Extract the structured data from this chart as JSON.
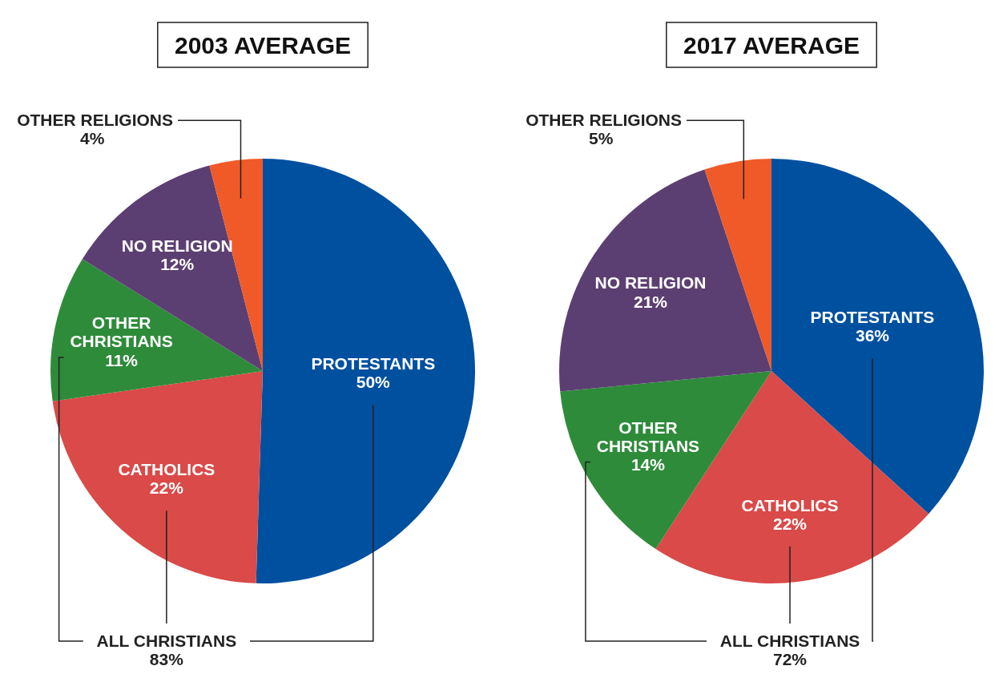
{
  "chart_data": [
    {
      "type": "pie",
      "title": "2003 AVERAGE",
      "categories": [
        "PROTESTANTS",
        "CATHOLICS",
        "OTHER CHRISTIANS",
        "NO RELIGION",
        "OTHER RELIGIONS"
      ],
      "values": [
        50,
        22,
        11,
        12,
        4
      ],
      "value_labels": [
        "50%",
        "22%",
        "11%",
        "12%",
        "4%"
      ],
      "colors": [
        "#0050a0",
        "#d94a48",
        "#2e8b3a",
        "#5c3f72",
        "#f05a28"
      ],
      "annotations": [
        "ALL CHRISTIANS",
        "83%"
      ]
    },
    {
      "type": "pie",
      "title": "2017 AVERAGE",
      "categories": [
        "PROTESTANTS",
        "CATHOLICS",
        "OTHER CHRISTIANS",
        "NO RELIGION",
        "OTHER RELIGIONS"
      ],
      "values": [
        36,
        22,
        14,
        21,
        5
      ],
      "value_labels": [
        "36%",
        "22%",
        "14%",
        "21%",
        "5%"
      ],
      "colors": [
        "#0050a0",
        "#d94a48",
        "#2e8b3a",
        "#5c3f72",
        "#f05a28"
      ],
      "annotations": [
        "ALL CHRISTIANS",
        "72%"
      ]
    }
  ]
}
